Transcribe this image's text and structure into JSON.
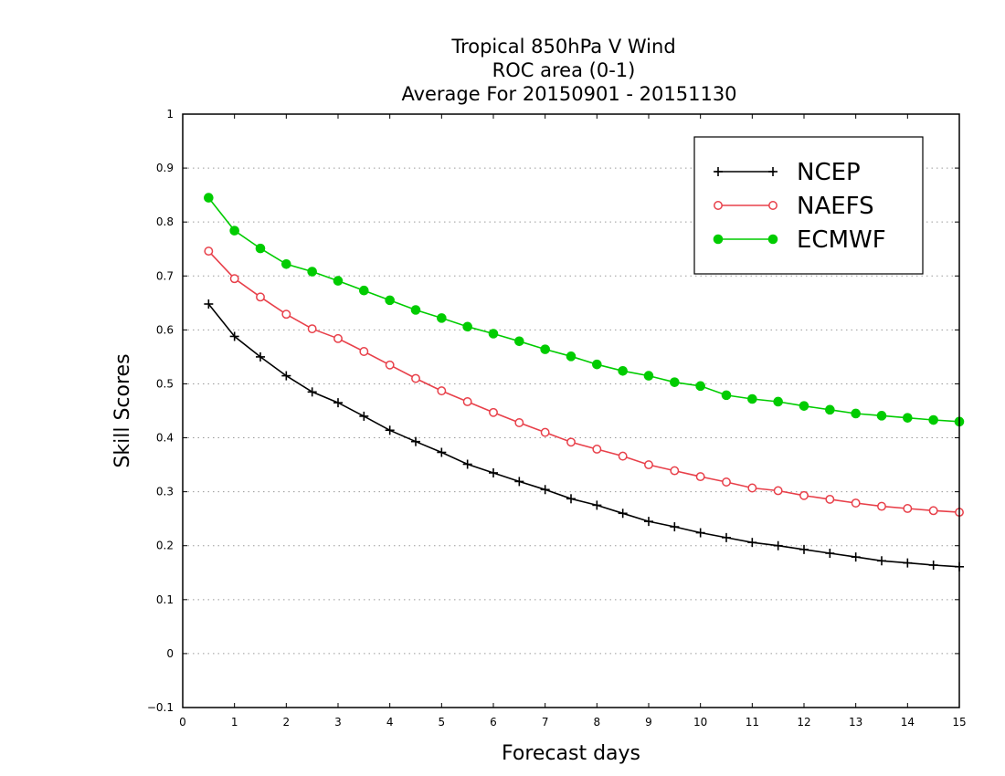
{
  "chart_data": {
    "type": "line",
    "title_lines": [
      "Tropical 850hPa V Wind",
      "ROC area (0-1)",
      "Average For 20150901 - 20151130"
    ],
    "xlabel": "Forecast days",
    "ylabel": "Skill Scores",
    "xlim": [
      0,
      15
    ],
    "ylim": [
      -0.1,
      1
    ],
    "x_ticks": [
      "0",
      "1",
      "2",
      "3",
      "4",
      "5",
      "6",
      "7",
      "8",
      "9",
      "10",
      "11",
      "12",
      "13",
      "14",
      "15"
    ],
    "y_ticks": [
      "−0.1",
      "0",
      "0.1",
      "0.2",
      "0.3",
      "0.4",
      "0.5",
      "0.6",
      "0.7",
      "0.8",
      "0.9",
      "1"
    ],
    "grid": "horizontal-dotted",
    "legend_position": "top-right",
    "x": [
      0.5,
      1,
      1.5,
      2,
      2.5,
      3,
      3.5,
      4,
      4.5,
      5,
      5.5,
      6,
      6.5,
      7,
      7.5,
      8,
      8.5,
      9,
      9.5,
      10,
      10.5,
      11,
      11.5,
      12,
      12.5,
      13,
      13.5,
      14,
      14.5,
      15
    ],
    "series": [
      {
        "name": "NCEP",
        "color": "#000000",
        "marker": "plus",
        "values": [
          0.648,
          0.588,
          0.55,
          0.515,
          0.485,
          0.465,
          0.44,
          0.414,
          0.393,
          0.373,
          0.351,
          0.335,
          0.319,
          0.304,
          0.287,
          0.275,
          0.26,
          0.245,
          0.235,
          0.224,
          0.215,
          0.206,
          0.2,
          0.193,
          0.186,
          0.179,
          0.172,
          0.168,
          0.164,
          0.161
        ]
      },
      {
        "name": "NAEFS",
        "color": "#e8404a",
        "marker": "open-circle",
        "values": [
          0.746,
          0.695,
          0.661,
          0.629,
          0.602,
          0.584,
          0.56,
          0.535,
          0.51,
          0.487,
          0.467,
          0.447,
          0.428,
          0.41,
          0.392,
          0.379,
          0.366,
          0.35,
          0.339,
          0.328,
          0.318,
          0.307,
          0.302,
          0.293,
          0.286,
          0.279,
          0.273,
          0.269,
          0.265,
          0.262
        ]
      },
      {
        "name": "ECMWF",
        "color": "#00cc00",
        "marker": "filled-circle",
        "values": [
          0.845,
          0.784,
          0.751,
          0.722,
          0.708,
          0.691,
          0.673,
          0.655,
          0.637,
          0.622,
          0.606,
          0.593,
          0.579,
          0.564,
          0.551,
          0.536,
          0.524,
          0.515,
          0.503,
          0.496,
          0.479,
          0.472,
          0.467,
          0.459,
          0.452,
          0.445,
          0.441,
          0.437,
          0.433,
          0.43
        ]
      }
    ]
  }
}
